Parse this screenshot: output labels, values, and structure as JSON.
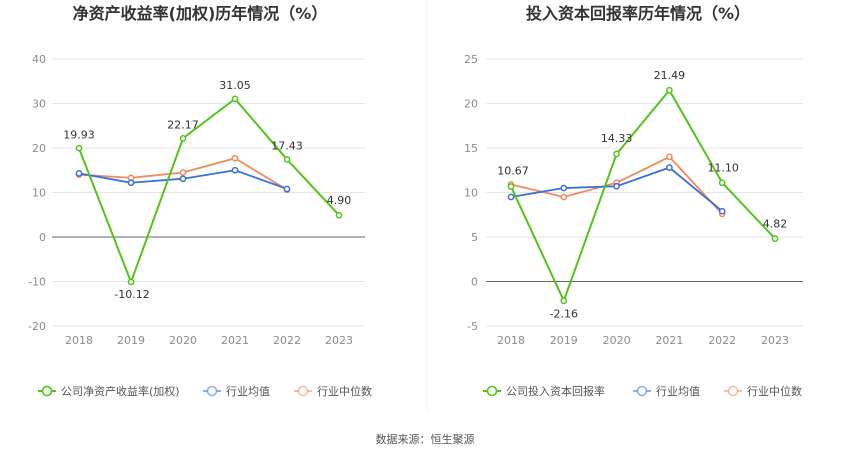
{
  "chart_data": [
    {
      "type": "line",
      "title": "净资产收益率(加权)历年情况（%）",
      "categories": [
        "2018",
        "2019",
        "2020",
        "2021",
        "2022",
        "2023"
      ],
      "ylim": [
        -20,
        40
      ],
      "yticks": [
        "40",
        "30",
        "20",
        "10",
        "0",
        "-10",
        "-20"
      ],
      "grid": true,
      "legend_position": "bottom",
      "series": [
        {
          "name": "公司净资产收益率(加权)",
          "color": "#52c41a",
          "values": [
            19.93,
            -10.12,
            22.17,
            31.05,
            17.43,
            4.9
          ],
          "labels": [
            "19.93",
            "-10.12",
            "22.17",
            "31.05",
            "17.43",
            "4.90"
          ]
        },
        {
          "name": "行业均值",
          "color": "#3a6fd8",
          "values": [
            14.3,
            12.2,
            13.1,
            15.0,
            10.8,
            null
          ]
        },
        {
          "name": "行业中位数",
          "color": "#f08a5d",
          "values": [
            14.0,
            13.3,
            14.5,
            17.7,
            10.6,
            null
          ]
        }
      ]
    },
    {
      "type": "line",
      "title": "投入资本回报率历年情况（%）",
      "categories": [
        "2018",
        "2019",
        "2020",
        "2021",
        "2022",
        "2023"
      ],
      "ylim": [
        -5,
        25
      ],
      "yticks": [
        "25",
        "20",
        "15",
        "10",
        "5",
        "0",
        "-5"
      ],
      "grid": true,
      "legend_position": "bottom",
      "series": [
        {
          "name": "公司投入资本回报率",
          "color": "#52c41a",
          "values": [
            10.67,
            -2.16,
            14.33,
            21.49,
            11.1,
            4.82
          ],
          "labels": [
            "10.67",
            "-2.16",
            "14.33",
            "21.49",
            "11.10",
            "4.82"
          ]
        },
        {
          "name": "行业均值",
          "color": "#3a6fd8",
          "values": [
            9.5,
            10.5,
            10.7,
            12.8,
            7.9,
            null
          ]
        },
        {
          "name": "行业中位数",
          "color": "#f08a5d",
          "values": [
            10.9,
            9.5,
            11.1,
            14.0,
            7.6,
            null
          ]
        }
      ]
    }
  ],
  "footer": {
    "source": "数据来源：恒生聚源"
  }
}
